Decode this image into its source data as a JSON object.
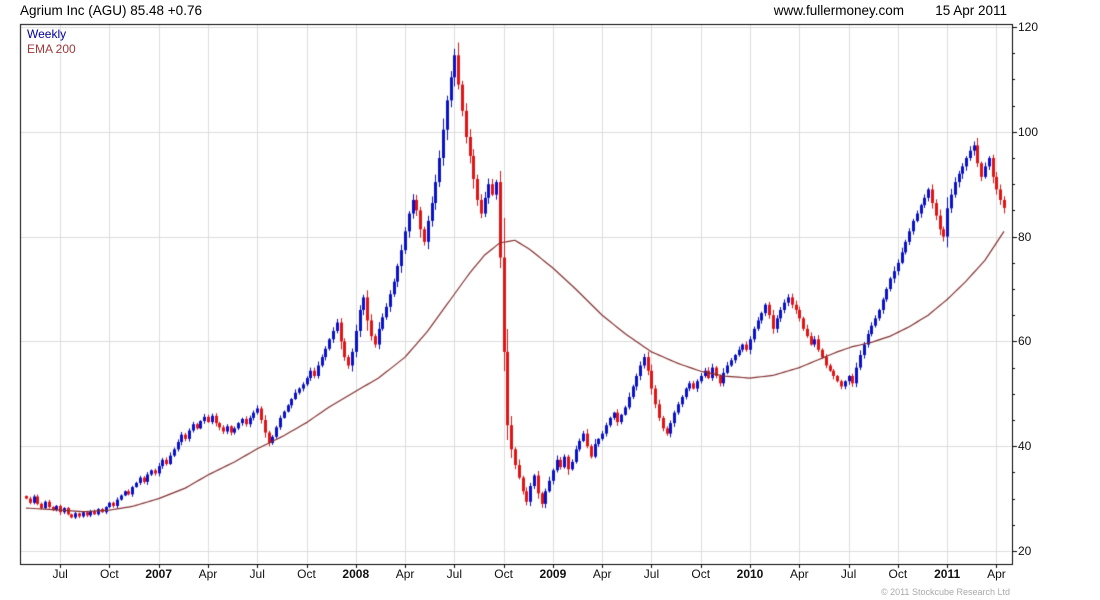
{
  "header": {
    "title": "Agrium Inc (AGU) 85.48 +0.76",
    "website": "www.fullermoney.com",
    "date": "15 Apr 2011"
  },
  "legend": {
    "series_label": "Weekly",
    "ema_label": "EMA 200"
  },
  "footer": {
    "copyright": "© 2011 Stockcube Research Ltd"
  },
  "chart_data": {
    "type": "candlestick",
    "title": "Agrium Inc (AGU) 85.48 +0.76",
    "instrument": {
      "name": "Agrium Inc",
      "ticker": "AGU",
      "last_price": 85.48,
      "change": "+0.76"
    },
    "timeframe": "Weekly",
    "overlay": "EMA 200",
    "legend_position": "top-left",
    "grid": true,
    "y_axis": {
      "side": "right",
      "min": 17.5,
      "max": 121,
      "ticks": [
        20,
        40,
        60,
        80,
        100,
        120
      ],
      "minor_step": 5
    },
    "x_labels": [
      {
        "week": 9,
        "label": "Jul",
        "bold": false
      },
      {
        "week": 22,
        "label": "Oct",
        "bold": false
      },
      {
        "week": 35,
        "label": "2007",
        "bold": true
      },
      {
        "week": 48,
        "label": "Apr",
        "bold": false
      },
      {
        "week": 61,
        "label": "Jul",
        "bold": false
      },
      {
        "week": 74,
        "label": "Oct",
        "bold": false
      },
      {
        "week": 87,
        "label": "2008",
        "bold": true
      },
      {
        "week": 100,
        "label": "Apr",
        "bold": false
      },
      {
        "week": 113,
        "label": "Jul",
        "bold": false
      },
      {
        "week": 126,
        "label": "Oct",
        "bold": false
      },
      {
        "week": 139,
        "label": "2009",
        "bold": true
      },
      {
        "week": 152,
        "label": "Apr",
        "bold": false
      },
      {
        "week": 165,
        "label": "Jul",
        "bold": false
      },
      {
        "week": 178,
        "label": "Oct",
        "bold": false
      },
      {
        "week": 191,
        "label": "2010",
        "bold": true
      },
      {
        "week": 204,
        "label": "Apr",
        "bold": false
      },
      {
        "week": 217,
        "label": "Jul",
        "bold": false
      },
      {
        "week": 230,
        "label": "Oct",
        "bold": false
      },
      {
        "week": 243,
        "label": "2011",
        "bold": true
      },
      {
        "week": 256,
        "label": "Apr",
        "bold": false
      }
    ],
    "weekly_closes": [
      30.0,
      29.2,
      30.4,
      29.0,
      28.2,
      29.4,
      28.4,
      27.8,
      28.6,
      27.4,
      28.2,
      27.0,
      26.4,
      27.2,
      26.6,
      27.4,
      26.8,
      27.6,
      27.0,
      28.0,
      27.4,
      28.4,
      29.2,
      28.6,
      29.8,
      30.6,
      31.4,
      30.8,
      32.2,
      33.0,
      34.0,
      33.2,
      34.6,
      35.4,
      34.8,
      36.2,
      37.4,
      36.6,
      38.2,
      39.4,
      40.8,
      42.2,
      41.4,
      43.0,
      44.2,
      43.4,
      44.8,
      45.6,
      44.6,
      45.8,
      44.4,
      43.6,
      42.8,
      43.8,
      42.6,
      43.4,
      44.4,
      45.2,
      44.2,
      45.4,
      46.4,
      47.2,
      45.0,
      42.6,
      40.6,
      41.8,
      43.6,
      45.4,
      46.6,
      47.8,
      49.0,
      50.2,
      51.0,
      51.8,
      53.0,
      54.4,
      53.4,
      55.4,
      57.0,
      58.6,
      60.4,
      62.0,
      63.6,
      60.0,
      57.0,
      55.4,
      58.0,
      62.0,
      66.0,
      68.4,
      64.0,
      61.0,
      59.4,
      62.4,
      64.6,
      66.6,
      69.0,
      71.4,
      74.4,
      77.4,
      81.0,
      84.4,
      87.0,
      85.0,
      81.4,
      79.0,
      83.0,
      86.4,
      90.4,
      95.0,
      100.4,
      106.0,
      110.4,
      114.6,
      109.0,
      104.0,
      99.0,
      95.4,
      91.0,
      87.0,
      84.4,
      87.4,
      90.0,
      88.0,
      90.4,
      76.0,
      58.0,
      44.0,
      39.4,
      36.4,
      34.0,
      31.4,
      29.4,
      32.4,
      34.4,
      31.0,
      29.0,
      31.4,
      33.4,
      35.4,
      37.4,
      36.0,
      38.0,
      35.6,
      37.0,
      39.4,
      41.0,
      42.4,
      40.0,
      38.0,
      40.4,
      41.4,
      42.4,
      44.0,
      45.4,
      46.4,
      44.6,
      46.0,
      47.4,
      49.4,
      51.4,
      53.4,
      55.4,
      57.0,
      54.4,
      51.0,
      48.0,
      45.4,
      43.4,
      42.4,
      44.4,
      46.4,
      48.0,
      49.4,
      51.0,
      52.0,
      51.0,
      52.4,
      53.4,
      54.4,
      53.0,
      55.0,
      53.4,
      52.0,
      54.0,
      55.4,
      56.4,
      57.4,
      58.4,
      59.4,
      58.4,
      60.4,
      62.4,
      64.0,
      65.4,
      67.0,
      65.0,
      62.4,
      64.4,
      66.0,
      67.4,
      68.4,
      67.0,
      66.0,
      64.4,
      62.4,
      61.0,
      59.4,
      60.4,
      58.4,
      57.0,
      55.4,
      54.4,
      53.4,
      52.4,
      51.4,
      52.4,
      53.4,
      52.0,
      55.0,
      57.4,
      59.4,
      61.4,
      63.0,
      64.4,
      66.0,
      68.0,
      70.0,
      72.0,
      73.4,
      75.0,
      77.0,
      79.0,
      81.0,
      83.0,
      84.4,
      86.0,
      87.4,
      89.0,
      86.4,
      84.0,
      81.4,
      80.0,
      85.4,
      88.0,
      90.4,
      92.0,
      93.4,
      95.0,
      96.4,
      97.4,
      94.0,
      91.4,
      93.4,
      95.0,
      91.4,
      89.0,
      87.0,
      85.48
    ],
    "candle_rule": "open equals previous close; high/low are small extensions of the body",
    "ema_anchors": [
      [
        0,
        28.2
      ],
      [
        9,
        27.8
      ],
      [
        15,
        27.5
      ],
      [
        22,
        27.8
      ],
      [
        28,
        28.5
      ],
      [
        35,
        30.0
      ],
      [
        42,
        32.0
      ],
      [
        48,
        34.5
      ],
      [
        55,
        37.0
      ],
      [
        61,
        39.5
      ],
      [
        68,
        42.0
      ],
      [
        74,
        44.5
      ],
      [
        80,
        47.5
      ],
      [
        87,
        50.5
      ],
      [
        93,
        53.0
      ],
      [
        100,
        57.0
      ],
      [
        106,
        62.0
      ],
      [
        112,
        68.0
      ],
      [
        117,
        73.0
      ],
      [
        121,
        76.5
      ],
      [
        125,
        78.8
      ],
      [
        129,
        79.3
      ],
      [
        133,
        77.5
      ],
      [
        139,
        74.0
      ],
      [
        145,
        70.0
      ],
      [
        152,
        65.0
      ],
      [
        158,
        61.5
      ],
      [
        165,
        58.0
      ],
      [
        172,
        55.8
      ],
      [
        178,
        54.3
      ],
      [
        184,
        53.4
      ],
      [
        191,
        53.0
      ],
      [
        197,
        53.5
      ],
      [
        204,
        55.0
      ],
      [
        209,
        56.5
      ],
      [
        214,
        58.0
      ],
      [
        218,
        59.0
      ],
      [
        223,
        59.8
      ],
      [
        228,
        61.0
      ],
      [
        233,
        62.8
      ],
      [
        238,
        65.0
      ],
      [
        243,
        68.0
      ],
      [
        248,
        71.5
      ],
      [
        253,
        75.5
      ],
      [
        258,
        81.0
      ]
    ],
    "colors": {
      "up_candle": "#0a12c8",
      "down_candle": "#e01414",
      "ema_line": "#833030",
      "grid": "#dcdcdc",
      "frame": "#000000",
      "axis_text": "#111111",
      "legend_weekly": "#00009b",
      "legend_ema": "#9e3a3a"
    }
  }
}
